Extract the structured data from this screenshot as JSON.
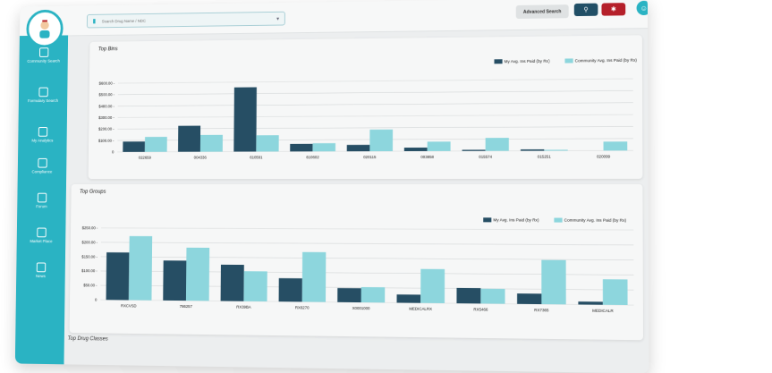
{
  "colors": {
    "my": "#264e64",
    "community": "#8dd6dd",
    "accent": "#2ab3c3",
    "danger": "#b5202a"
  },
  "search": {
    "placeholder": "Search Drug Name / NDC",
    "icon": "pill-icon"
  },
  "toolbar": {
    "advanced_search": "Advanced Search",
    "search_icon": "search-icon",
    "reset_icon": "gear-icon"
  },
  "nav": [
    {
      "label": "Community Search",
      "icon": "bar-chart-icon"
    },
    {
      "label": "Formulary Search",
      "icon": "document-icon"
    },
    {
      "label": "My Analytics",
      "icon": "analytics-icon"
    },
    {
      "label": "Compliance",
      "icon": "clipboard-icon"
    },
    {
      "label": "Forum",
      "icon": "chat-icon"
    },
    {
      "label": "Market Place",
      "icon": "store-icon"
    },
    {
      "label": "News",
      "icon": "monitor-icon"
    }
  ],
  "chart_data": [
    {
      "type": "bar",
      "title": "Top Bins",
      "categories": [
        "022659",
        "004336",
        "610591",
        "610602",
        "020115",
        "003858",
        "015574",
        "015251",
        "020099"
      ],
      "series": [
        {
          "name": "My Avg. Ins Paid (by Rx)",
          "values": [
            90,
            225,
            555,
            65,
            55,
            30,
            10,
            12,
            0
          ]
        },
        {
          "name": "Community Avg. Ins Paid (by Rx)",
          "values": [
            130,
            145,
            140,
            70,
            185,
            80,
            110,
            8,
            75
          ]
        }
      ],
      "ylim": [
        0,
        600
      ],
      "yticks": [
        "0",
        "$100.00",
        "$200.00",
        "$300.00",
        "$400.00",
        "$500.00",
        "$600.00"
      ],
      "legend": "top-right"
    },
    {
      "type": "bar",
      "title": "Top Groups",
      "categories": [
        "RXCVSD",
        "786257",
        "RX39BA",
        "RX6270",
        "X0001000",
        "MEDICALRX",
        "RX5466",
        "RX7365",
        "MEDICALR"
      ],
      "series": [
        {
          "name": "My Avg. Ins Paid (by Rx)",
          "values": [
            165,
            138,
            125,
            80,
            48,
            28,
            52,
            35,
            10
          ]
        },
        {
          "name": "Community Avg. Ins Paid (by Rx)",
          "values": [
            222,
            183,
            103,
            170,
            52,
            115,
            50,
            148,
            85
          ]
        }
      ],
      "ylim": [
        0,
        250
      ],
      "yticks": [
        "0",
        "$50.00",
        "$100.00",
        "$150.00",
        "$200.00",
        "$250.00"
      ],
      "legend": "top-right"
    }
  ],
  "next_section": "Top Drug Classes"
}
